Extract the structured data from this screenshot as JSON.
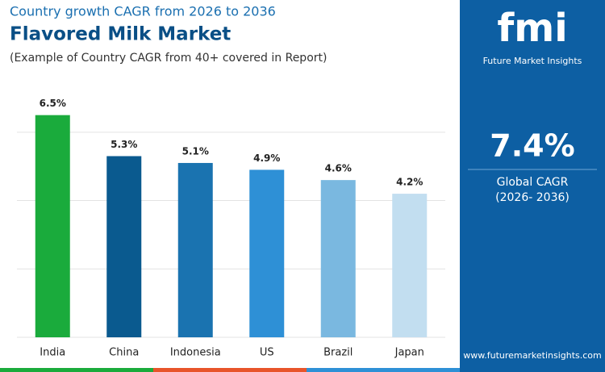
{
  "header": {
    "kicker": "Country growth CAGR from 2026 to 2036",
    "title": "Flavored Milk Market",
    "note": "(Example of Country CAGR from 40+ covered in Report)"
  },
  "chart_data": {
    "type": "bar",
    "categories": [
      "India",
      "China",
      "Indonesia",
      "US",
      "Brazil",
      "Japan"
    ],
    "values": [
      6.5,
      5.3,
      5.1,
      4.9,
      4.6,
      4.2
    ],
    "value_labels": [
      "6.5%",
      "5.3%",
      "5.1%",
      "4.9%",
      "4.6%",
      "4.2%"
    ],
    "colors": [
      "#1aab3c",
      "#0a5a8f",
      "#1a73b0",
      "#2e90d6",
      "#7ab8e0",
      "#c2def0"
    ],
    "ylim": [
      0,
      7.2
    ],
    "yticks": [
      0,
      2,
      4,
      6
    ],
    "grid": true
  },
  "panel": {
    "logo": "fmi",
    "logo_text": "Future Market Insights",
    "cagr": "7.4%",
    "cagr_label": "Global CAGR",
    "period": "(2026- 2036)",
    "website": "www.futuremarketinsights.com"
  }
}
